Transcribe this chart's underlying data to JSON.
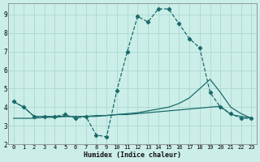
{
  "xlabel": "Humidex (Indice chaleur)",
  "bg_color": "#cceee8",
  "line_color": "#1a6b6b",
  "grid_color": "#aad8d0",
  "xlim": [
    -0.5,
    23.5
  ],
  "ylim": [
    2,
    9.6
  ],
  "xticks": [
    0,
    1,
    2,
    3,
    4,
    5,
    6,
    7,
    8,
    9,
    10,
    11,
    12,
    13,
    14,
    15,
    16,
    17,
    18,
    19,
    20,
    21,
    22,
    23
  ],
  "yticks": [
    2,
    3,
    4,
    5,
    6,
    7,
    8,
    9
  ],
  "line1_x": [
    0,
    1,
    2,
    3,
    4,
    5,
    6,
    7,
    8,
    9,
    10,
    11,
    12,
    13,
    14,
    15,
    16,
    17,
    18,
    19,
    20,
    21,
    22,
    23
  ],
  "line1_y": [
    4.3,
    4.0,
    3.5,
    3.5,
    3.5,
    3.6,
    3.4,
    3.5,
    2.5,
    2.4,
    4.9,
    7.0,
    8.9,
    8.6,
    9.3,
    9.3,
    8.5,
    7.7,
    7.2,
    4.8,
    4.0,
    3.65,
    3.4,
    3.4
  ],
  "line2_x": [
    0,
    1,
    2,
    3,
    4,
    5,
    6,
    7,
    8,
    9,
    10,
    11,
    12,
    13,
    14,
    15,
    16,
    17,
    18,
    19,
    20,
    21,
    22,
    23
  ],
  "line2_y": [
    3.4,
    3.4,
    3.4,
    3.45,
    3.45,
    3.5,
    3.5,
    3.5,
    3.55,
    3.55,
    3.6,
    3.6,
    3.65,
    3.7,
    3.75,
    3.8,
    3.85,
    3.9,
    3.95,
    4.0,
    4.05,
    3.6,
    3.5,
    3.4
  ],
  "line3_x": [
    0,
    1,
    2,
    3,
    4,
    5,
    6,
    7,
    8,
    9,
    10,
    11,
    12,
    13,
    14,
    15,
    16,
    17,
    18,
    19,
    20,
    21,
    22,
    23
  ],
  "line3_y": [
    4.3,
    4.0,
    3.5,
    3.5,
    3.5,
    3.5,
    3.5,
    3.5,
    3.5,
    3.55,
    3.6,
    3.65,
    3.7,
    3.8,
    3.9,
    4.0,
    4.2,
    4.5,
    5.0,
    5.5,
    4.8,
    4.0,
    3.65,
    3.4
  ]
}
